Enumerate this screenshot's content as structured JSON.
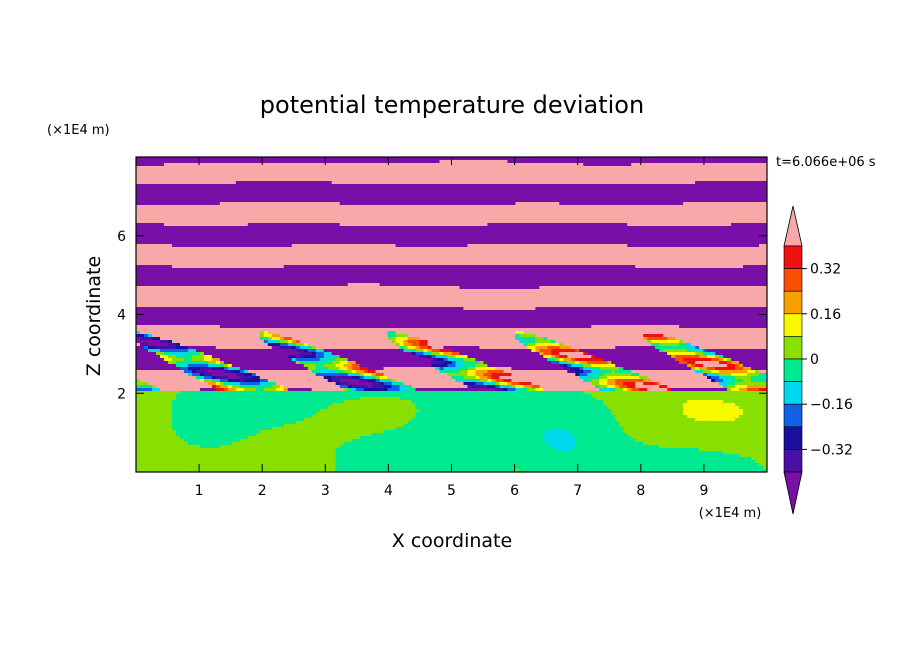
{
  "chart_data": {
    "type": "heatmap",
    "title": "potential temperature deviation",
    "time_label": "t=6.066e+06 s",
    "xlabel": "X coordinate",
    "ylabel": "Z coordinate",
    "x_unit": "(×1E4 m)",
    "y_unit": "(×1E4 m)",
    "xlim": [
      0,
      10
    ],
    "ylim": [
      0,
      8
    ],
    "x_ticks": [
      "1",
      "2",
      "3",
      "4",
      "5",
      "6",
      "7",
      "8",
      "9"
    ],
    "y_ticks": [
      "2",
      "4",
      "6"
    ],
    "colorbar": {
      "levels": [
        -0.48,
        -0.4,
        -0.32,
        -0.24,
        -0.16,
        -0.08,
        0,
        0.08,
        0.16,
        0.24,
        0.32,
        0.4,
        0.48
      ],
      "colors": [
        "#7A0FA8",
        "#4A0FA8",
        "#1A0FA0",
        "#1060E8",
        "#00D8F0",
        "#00E890",
        "#88E000",
        "#F8F800",
        "#F8A000",
        "#F85000",
        "#F01010",
        "#F8A8A8"
      ],
      "labels": [
        "0.32",
        "0.16",
        "0",
        "-0.16",
        "-0.32"
      ],
      "extend": "both"
    }
  }
}
